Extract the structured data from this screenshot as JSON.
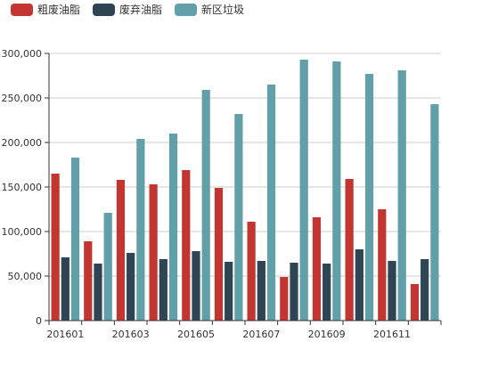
{
  "chart_data": {
    "type": "bar",
    "categories": [
      "201601",
      "201602",
      "201603",
      "201604",
      "201605",
      "201606",
      "201607",
      "201608",
      "201609",
      "201610",
      "201611",
      "201612"
    ],
    "x_tick_labels": [
      "201601",
      "201603",
      "201605",
      "201607",
      "201609",
      "201611"
    ],
    "y_tick_labels": [
      "0",
      "50,000",
      "100,000",
      "150,000",
      "200,000",
      "250,000",
      "300,000"
    ],
    "ylim": [
      0,
      300000
    ],
    "grid": true,
    "legend_position": "top-left",
    "series": [
      {
        "name": "粗废油脂",
        "color": "#c23531",
        "values": [
          165000,
          89000,
          158000,
          153000,
          169000,
          149000,
          111000,
          49000,
          116000,
          159000,
          125000,
          41000
        ]
      },
      {
        "name": "废弃油脂",
        "color": "#2f4554",
        "values": [
          71000,
          64000,
          76000,
          69000,
          78000,
          66000,
          67000,
          65000,
          64000,
          80000,
          67000,
          69000
        ]
      },
      {
        "name": "新区垃圾",
        "color": "#61a0a8",
        "values": [
          183000,
          121000,
          204000,
          210000,
          259000,
          232000,
          265000,
          293000,
          291000,
          277000,
          281000,
          243000
        ]
      }
    ]
  }
}
